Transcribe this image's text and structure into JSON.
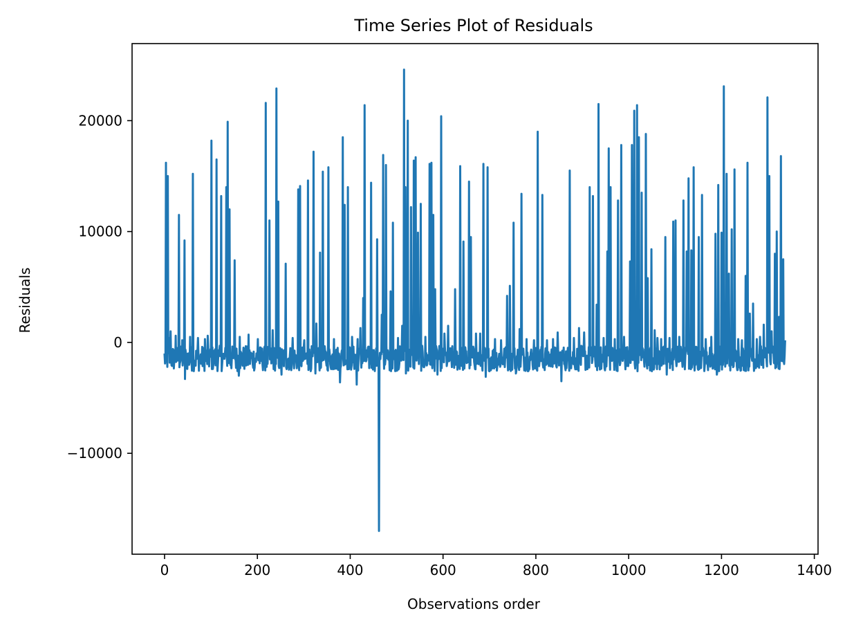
{
  "chart_data": {
    "type": "line",
    "title": "Time Series Plot of Residuals",
    "xlabel": "Observations order",
    "ylabel": "Residuals",
    "xlim": [
      -70,
      1408
    ],
    "ylim": [
      -19100,
      26950
    ],
    "x_ticks": [
      0,
      200,
      400,
      600,
      800,
      1000,
      1200,
      1400
    ],
    "x_tick_labels": [
      "0",
      "200",
      "400",
      "600",
      "800",
      "1000",
      "1200",
      "1400"
    ],
    "y_ticks": [
      -10000,
      0,
      10000,
      20000
    ],
    "y_tick_labels": [
      "−10000",
      "0",
      "10000",
      "20000"
    ],
    "grid": false,
    "legend": "none",
    "series": [
      {
        "color": "#1f77b4",
        "x_start": 0,
        "x_end": 1337,
        "baseline_min": -2600,
        "baseline_max": -300,
        "spikes": [
          [
            3,
            16200
          ],
          [
            7,
            15000
          ],
          [
            10,
            400
          ],
          [
            13,
            1000
          ],
          [
            24,
            600
          ],
          [
            31,
            11500
          ],
          [
            38,
            200
          ],
          [
            43,
            9200
          ],
          [
            55,
            500
          ],
          [
            61,
            15200
          ],
          [
            72,
            400
          ],
          [
            87,
            300
          ],
          [
            93,
            600
          ],
          [
            101,
            18200
          ],
          [
            112,
            16500
          ],
          [
            122,
            13200
          ],
          [
            133,
            14000
          ],
          [
            136,
            19900
          ],
          [
            140,
            12000
          ],
          [
            151,
            7400
          ],
          [
            162,
            500
          ],
          [
            181,
            700
          ],
          [
            201,
            300
          ],
          [
            218,
            21600
          ],
          [
            226,
            11000
          ],
          [
            233,
            1100
          ],
          [
            241,
            22900
          ],
          [
            245,
            12700
          ],
          [
            261,
            7100
          ],
          [
            276,
            400
          ],
          [
            288,
            13800
          ],
          [
            292,
            14100
          ],
          [
            301,
            200
          ],
          [
            309,
            14600
          ],
          [
            321,
            17200
          ],
          [
            327,
            1700
          ],
          [
            335,
            8100
          ],
          [
            341,
            15400
          ],
          [
            353,
            15800
          ],
          [
            365,
            300
          ],
          [
            378,
            13200
          ],
          [
            384,
            18500
          ],
          [
            388,
            12400
          ],
          [
            395,
            14000
          ],
          [
            404,
            500
          ],
          [
            416,
            300
          ],
          [
            422,
            1300
          ],
          [
            428,
            4000
          ],
          [
            431,
            21400
          ],
          [
            445,
            14400
          ],
          [
            458,
            9300
          ],
          [
            462,
            -17000
          ],
          [
            468,
            2500
          ],
          [
            471,
            16900
          ],
          [
            477,
            16000
          ],
          [
            487,
            4600
          ],
          [
            492,
            10800
          ],
          [
            503,
            400
          ],
          [
            512,
            1500
          ],
          [
            516,
            24600
          ],
          [
            519,
            14000
          ],
          [
            524,
            20000
          ],
          [
            531,
            12200
          ],
          [
            537,
            16400
          ],
          [
            541,
            16700
          ],
          [
            546,
            9900
          ],
          [
            552,
            12500
          ],
          [
            562,
            500
          ],
          [
            571,
            16100
          ],
          [
            575,
            16200
          ],
          [
            579,
            11500
          ],
          [
            583,
            4800
          ],
          [
            596,
            20400
          ],
          [
            603,
            800
          ],
          [
            611,
            1500
          ],
          [
            626,
            4800
          ],
          [
            637,
            15900
          ],
          [
            644,
            9100
          ],
          [
            656,
            14500
          ],
          [
            660,
            9500
          ],
          [
            671,
            800
          ],
          [
            680,
            800
          ],
          [
            687,
            16100
          ],
          [
            696,
            15800
          ],
          [
            712,
            300
          ],
          [
            725,
            200
          ],
          [
            738,
            4200
          ],
          [
            744,
            5100
          ],
          [
            752,
            10800
          ],
          [
            765,
            1200
          ],
          [
            769,
            13400
          ],
          [
            780,
            300
          ],
          [
            796,
            200
          ],
          [
            804,
            19000
          ],
          [
            814,
            13300
          ],
          [
            824,
            200
          ],
          [
            837,
            300
          ],
          [
            847,
            900
          ],
          [
            855,
            13500
          ],
          [
            873,
            15500
          ],
          [
            882,
            400
          ],
          [
            893,
            1300
          ],
          [
            904,
            900
          ],
          [
            916,
            14000
          ],
          [
            923,
            13200
          ],
          [
            931,
            3400
          ],
          [
            935,
            21500
          ],
          [
            946,
            400
          ],
          [
            954,
            8200
          ],
          [
            957,
            17500
          ],
          [
            961,
            14000
          ],
          [
            970,
            300
          ],
          [
            977,
            12800
          ],
          [
            984,
            17800
          ],
          [
            990,
            500
          ],
          [
            1003,
            7300
          ],
          [
            1007,
            17800
          ],
          [
            1012,
            20900
          ],
          [
            1018,
            21400
          ],
          [
            1022,
            18500
          ],
          [
            1028,
            13500
          ],
          [
            1037,
            18800
          ],
          [
            1041,
            5800
          ],
          [
            1049,
            8400
          ],
          [
            1056,
            1100
          ],
          [
            1062,
            400
          ],
          [
            1070,
            300
          ],
          [
            1079,
            9500
          ],
          [
            1088,
            400
          ],
          [
            1096,
            10900
          ],
          [
            1101,
            11000
          ],
          [
            1109,
            500
          ],
          [
            1118,
            12800
          ],
          [
            1125,
            8200
          ],
          [
            1129,
            14800
          ],
          [
            1135,
            8300
          ],
          [
            1140,
            15800
          ],
          [
            1151,
            9500
          ],
          [
            1158,
            13300
          ],
          [
            1166,
            300
          ],
          [
            1178,
            500
          ],
          [
            1187,
            9800
          ],
          [
            1193,
            14200
          ],
          [
            1200,
            9900
          ],
          [
            1205,
            23100
          ],
          [
            1211,
            15200
          ],
          [
            1216,
            6200
          ],
          [
            1222,
            10200
          ],
          [
            1228,
            15600
          ],
          [
            1236,
            300
          ],
          [
            1244,
            200
          ],
          [
            1252,
            6000
          ],
          [
            1256,
            16200
          ],
          [
            1261,
            2600
          ],
          [
            1268,
            3500
          ],
          [
            1276,
            300
          ],
          [
            1283,
            500
          ],
          [
            1291,
            1600
          ],
          [
            1299,
            22100
          ],
          [
            1303,
            15000
          ],
          [
            1308,
            1000
          ],
          [
            1315,
            8000
          ],
          [
            1319,
            10000
          ],
          [
            1324,
            2300
          ],
          [
            1328,
            16800
          ],
          [
            1333,
            7500
          ],
          [
            1337,
            100
          ]
        ],
        "dips": [
          [
            44,
            -3300
          ],
          [
            160,
            -3000
          ],
          [
            252,
            -2900
          ],
          [
            325,
            -2800
          ],
          [
            378,
            -3600
          ],
          [
            414,
            -3800
          ],
          [
            520,
            -2800
          ],
          [
            588,
            -2900
          ],
          [
            692,
            -3100
          ],
          [
            757,
            -2800
          ],
          [
            855,
            -3500
          ],
          [
            1082,
            -2900
          ],
          [
            1190,
            -2900
          ],
          [
            1325,
            -2400
          ]
        ]
      }
    ]
  }
}
